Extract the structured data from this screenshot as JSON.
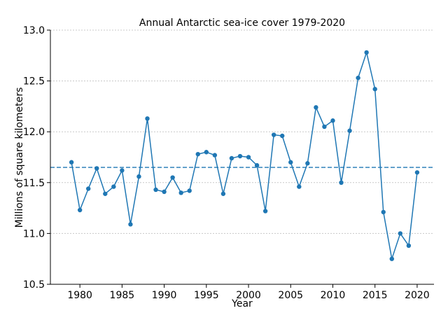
{
  "chart_data": {
    "type": "line",
    "title": "Annual Antarctic sea-ice cover 1979-2020",
    "xlabel": "Year",
    "ylabel": "Millions of square kilometers",
    "xlim": [
      1976.5,
      2022
    ],
    "ylim": [
      10.5,
      13.0
    ],
    "xticks": [
      1980,
      1985,
      1990,
      1995,
      2000,
      2005,
      2010,
      2015,
      2020
    ],
    "yticks": [
      "10.5",
      "11.0",
      "11.5",
      "12.0",
      "12.5",
      "13.0"
    ],
    "grid": "horizontal dotted",
    "series": [
      {
        "x": [
          1979,
          1980,
          1981,
          1982,
          1983,
          1984,
          1985,
          1986,
          1987,
          1988,
          1989,
          1990,
          1991,
          1992,
          1993,
          1994,
          1995,
          1996,
          1997,
          1998,
          1999,
          2000,
          2001,
          2002,
          2003,
          2004,
          2005,
          2006,
          2007,
          2008,
          2009,
          2010,
          2011,
          2012,
          2013,
          2014,
          2015,
          2016,
          2017,
          2018,
          2019,
          2020
        ],
        "values": [
          11.7,
          11.23,
          11.44,
          11.64,
          11.39,
          11.46,
          11.62,
          11.09,
          11.56,
          12.13,
          11.43,
          11.41,
          11.55,
          11.4,
          11.42,
          11.78,
          11.8,
          11.77,
          11.39,
          11.74,
          11.76,
          11.75,
          11.67,
          11.22,
          11.97,
          11.96,
          11.7,
          11.46,
          11.69,
          12.24,
          12.05,
          12.11,
          11.5,
          12.01,
          12.53,
          12.78,
          12.42,
          11.21,
          10.75,
          11.0,
          10.88,
          11.6
        ],
        "color": "#1f77b4"
      }
    ],
    "reference_line": {
      "y": 11.65,
      "style": "dashed",
      "color": "#1f77b4"
    }
  }
}
